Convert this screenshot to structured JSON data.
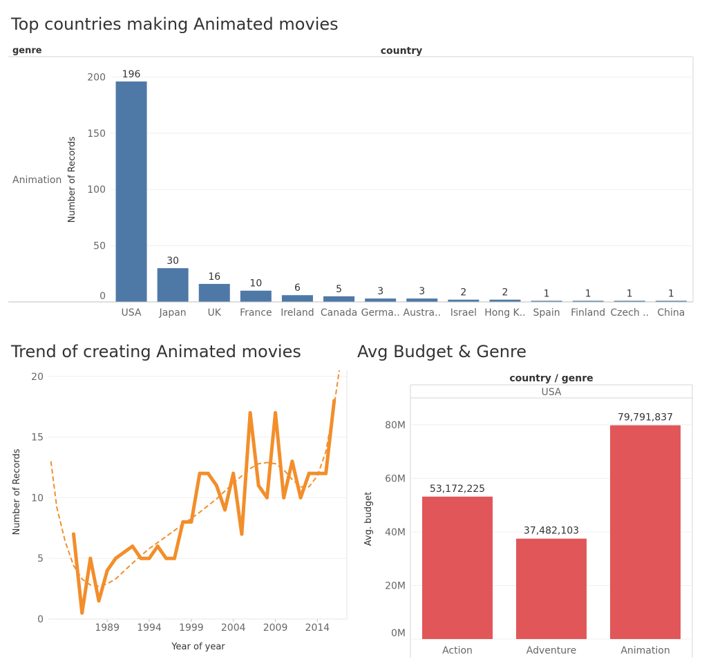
{
  "chart_data": [
    {
      "type": "bar",
      "title": "Top countries making Animated movies",
      "row_header": "genre",
      "column_header": "country",
      "row_label": "Animation",
      "ylabel": "Number of Records",
      "categories": [
        "USA",
        "Japan",
        "UK",
        "France",
        "Ireland",
        "Canada",
        "Germa..",
        "Austra..",
        "Israel",
        "Hong K..",
        "Spain",
        "Finland",
        "Czech ..",
        "China"
      ],
      "values": [
        196,
        30,
        16,
        10,
        6,
        5,
        3,
        3,
        2,
        2,
        1,
        1,
        1,
        1
      ],
      "yticks": [
        0,
        50,
        100,
        150,
        200
      ],
      "ylim": [
        0,
        215
      ],
      "grid": true,
      "color": "#4e79a7"
    },
    {
      "type": "line",
      "title": "Trend of creating Animated movies",
      "xlabel": "Year of year",
      "ylabel": "Number of Records",
      "xticks": [
        1989,
        1994,
        1999,
        2004,
        2009,
        2014
      ],
      "yticks": [
        0,
        5,
        10,
        15,
        20
      ],
      "xlim": [
        1982,
        2017.5
      ],
      "ylim": [
        0,
        20.5
      ],
      "grid": true,
      "color": "#f28e2b",
      "trend_line": "dashed",
      "x": [
        1985,
        1986,
        1987,
        1988,
        1989,
        1990,
        1992,
        1993,
        1994,
        1995,
        1996,
        1997,
        1998,
        1999,
        2000,
        2001,
        2002,
        2003,
        2004,
        2005,
        2006,
        2007,
        2008,
        2009,
        2010,
        2011,
        2012,
        2013,
        2014,
        2015,
        2016
      ],
      "y": [
        7,
        0.5,
        5,
        1.5,
        4,
        5,
        6,
        5,
        5,
        6,
        5,
        5,
        8,
        8,
        12,
        12,
        11,
        9,
        12,
        7,
        17,
        11,
        10,
        17,
        10,
        13,
        10,
        12,
        12,
        12,
        18
      ],
      "trend_x": [
        1982.3,
        1983,
        1984,
        1985,
        1986,
        1987,
        1988,
        1989,
        1990,
        1992,
        1994,
        1996,
        1998,
        2000,
        2002,
        2004,
        2006,
        2007,
        2008,
        2009,
        2010,
        2011,
        2012,
        2013,
        2014,
        2015,
        2016,
        2016.6
      ],
      "trend_y": [
        13,
        9.2,
        6.4,
        4.4,
        3.3,
        2.8,
        2.7,
        2.9,
        3.3,
        4.6,
        5.8,
        6.8,
        7.8,
        8.8,
        9.9,
        11.2,
        12.4,
        12.8,
        12.9,
        12.8,
        12.3,
        11.5,
        10.9,
        10.9,
        11.8,
        13.8,
        17.6,
        20.5
      ]
    },
    {
      "type": "bar",
      "title": "Avg Budget & Genre",
      "column_header": "country / genre",
      "group": "USA",
      "ylabel": "Avg. budget",
      "categories": [
        "Action",
        "Adventure",
        "Animation"
      ],
      "values": [
        53172225,
        37482103,
        79791837
      ],
      "value_labels": [
        "53,172,225",
        "37,482,103",
        "79,791,837"
      ],
      "yticks": [
        0,
        20000000,
        40000000,
        60000000,
        80000000
      ],
      "ytick_labels": [
        "0M",
        "20M",
        "40M",
        "60M",
        "80M"
      ],
      "ylim": [
        0,
        90000000
      ],
      "grid": true,
      "color": "#e15759"
    }
  ]
}
